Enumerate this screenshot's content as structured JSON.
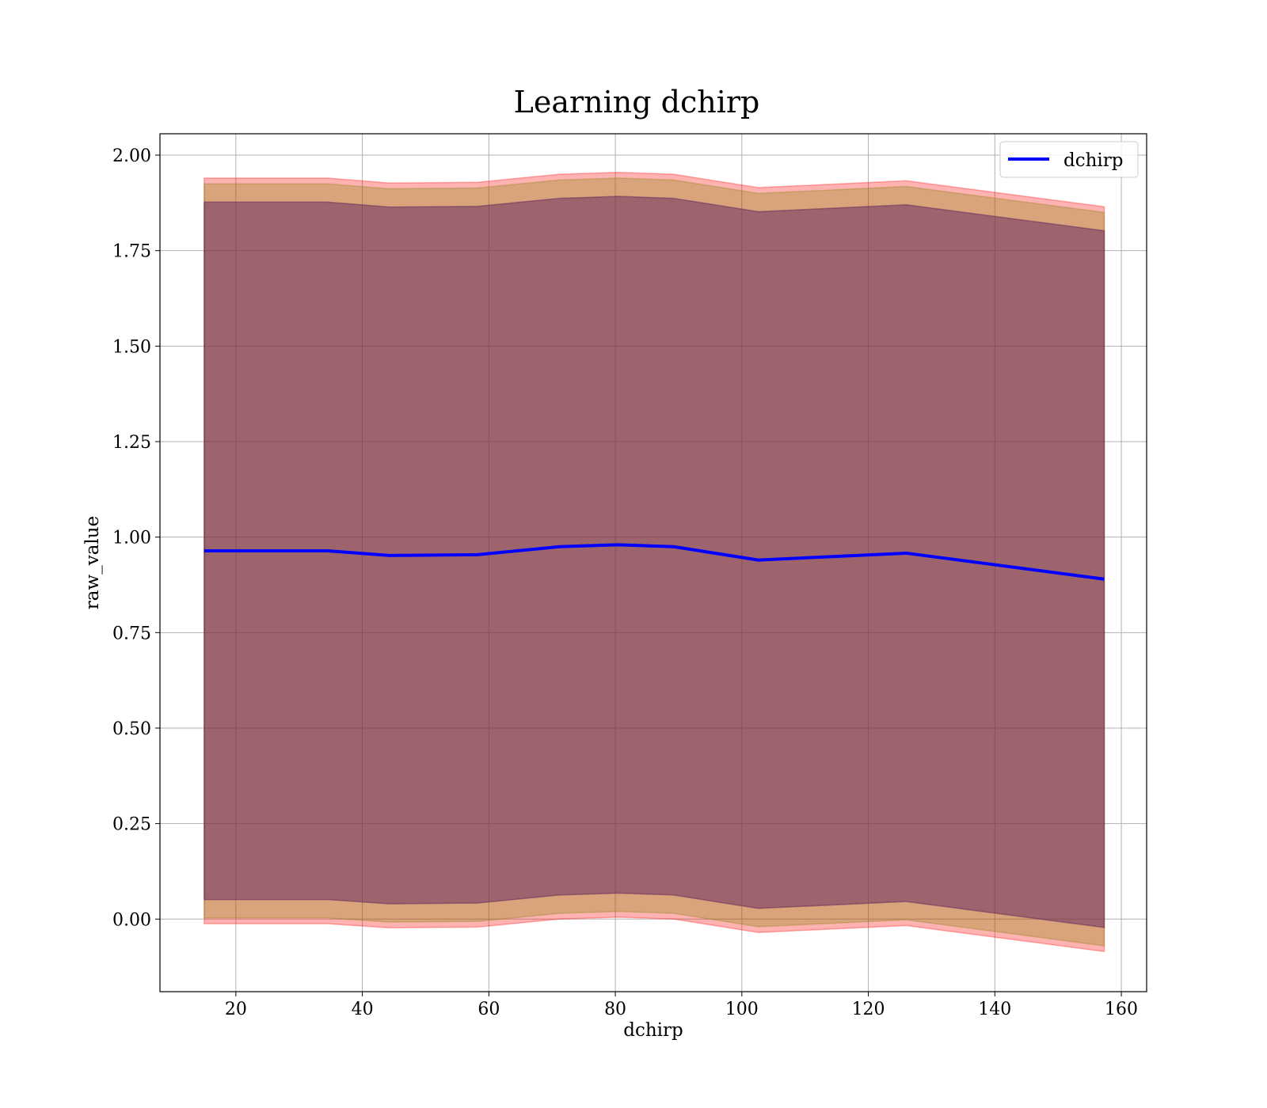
{
  "chart_data": {
    "type": "area",
    "title": "Learning dchirp",
    "xlabel": "dchirp",
    "ylabel": "raw_value",
    "xlim": [
      8,
      164
    ],
    "ylim": [
      -0.19,
      2.056
    ],
    "xticks": [
      20,
      40,
      60,
      80,
      100,
      120,
      140,
      160
    ],
    "yticks": [
      0.0,
      0.25,
      0.5,
      0.75,
      1.0,
      1.25,
      1.5,
      1.75,
      2.0
    ],
    "xtick_labels": [
      "20",
      "40",
      "60",
      "80",
      "100",
      "120",
      "140",
      "160"
    ],
    "ytick_labels": [
      "0.00",
      "0.25",
      "0.50",
      "0.75",
      "1.00",
      "1.25",
      "1.50",
      "1.75",
      "2.00"
    ],
    "grid": true,
    "legend": {
      "position": "top-right",
      "entries": [
        "dchirp"
      ]
    },
    "x": [
      15,
      34.5,
      44.3,
      58.2,
      71.2,
      80.5,
      89.2,
      102.6,
      126,
      157.3
    ],
    "series": [
      {
        "name": "dchirp",
        "color": "#0000ff",
        "values": [
          0.964,
          0.964,
          0.952,
          0.954,
          0.975,
          0.98,
          0.975,
          0.94,
          0.958,
          0.89
        ]
      }
    ],
    "bands": [
      {
        "color": "#ff0000",
        "opacity": 0.3,
        "upper": [
          1.94,
          1.94,
          1.927,
          1.929,
          1.95,
          1.955,
          1.95,
          1.915,
          1.933,
          1.865
        ],
        "lower": [
          -0.012,
          -0.012,
          -0.023,
          -0.021,
          0.0,
          0.005,
          0.0,
          -0.035,
          -0.017,
          -0.085
        ]
      },
      {
        "color": "#808000",
        "opacity": 0.3,
        "upper": [
          1.925,
          1.925,
          1.912,
          1.914,
          1.935,
          1.94,
          1.935,
          1.9,
          1.918,
          1.85
        ],
        "lower": [
          0.003,
          0.003,
          -0.008,
          -0.006,
          0.015,
          0.02,
          0.015,
          -0.02,
          -0.002,
          -0.07
        ]
      },
      {
        "color": "#800080",
        "opacity": 0.3,
        "upper": [
          1.877,
          1.877,
          1.864,
          1.866,
          1.887,
          1.892,
          1.887,
          1.852,
          1.87,
          1.802
        ],
        "lower": [
          0.051,
          0.051,
          0.04,
          0.042,
          0.063,
          0.068,
          0.063,
          0.028,
          0.046,
          -0.022
        ]
      },
      {
        "color": "#404040",
        "opacity": 0.25,
        "upper": [
          1.877,
          1.877,
          1.864,
          1.866,
          1.887,
          1.892,
          1.887,
          1.852,
          1.87,
          1.802
        ],
        "lower": [
          0.051,
          0.051,
          0.04,
          0.042,
          0.063,
          0.068,
          0.063,
          0.028,
          0.046,
          -0.022
        ]
      }
    ]
  }
}
